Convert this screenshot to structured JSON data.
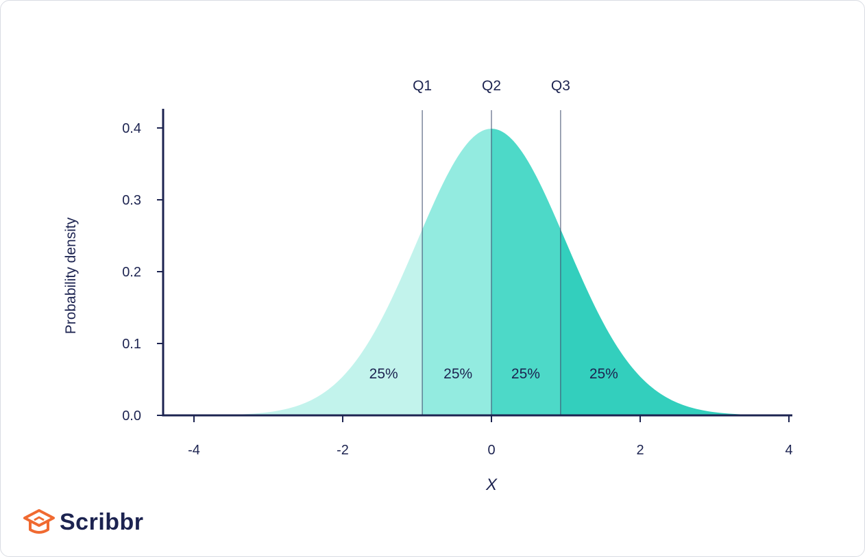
{
  "chart_data": {
    "type": "area",
    "distribution": "standard normal",
    "x": [
      -4,
      -3.5,
      -3,
      -2.5,
      -2,
      -1.5,
      -1,
      -0.5,
      0,
      0.5,
      1,
      1.5,
      2,
      2.5,
      3,
      3.5,
      4
    ],
    "y": [
      0.0001,
      0.0009,
      0.0044,
      0.0175,
      0.054,
      0.1295,
      0.242,
      0.3521,
      0.3989,
      0.3521,
      0.242,
      0.1295,
      0.054,
      0.0175,
      0.0044,
      0.0009,
      0.0001
    ],
    "title": "",
    "xlabel": "X",
    "ylabel": "Probability density",
    "xlim": [
      -4.4,
      4.1
    ],
    "ylim": [
      0,
      0.42
    ],
    "x_ticks": [
      -4,
      -2,
      0,
      2,
      4
    ],
    "x_tick_labels": [
      "-4",
      "-2",
      "0",
      "2",
      "4"
    ],
    "y_ticks": [
      0.0,
      0.1,
      0.2,
      0.3,
      0.4
    ],
    "y_tick_labels": [
      "0.0",
      "0.1",
      "0.2",
      "0.3",
      "0.4"
    ],
    "grid": false,
    "quartiles": [
      {
        "label": "Q1",
        "x": -0.93
      },
      {
        "label": "Q2",
        "x": 0
      },
      {
        "label": "Q3",
        "x": 0.93
      }
    ],
    "regions": [
      {
        "label": "25%",
        "from": -4,
        "to": -0.93,
        "color": "#c2f3ec",
        "label_x": -1.45
      },
      {
        "label": "25%",
        "from": -0.93,
        "to": 0,
        "color": "#93ebe0",
        "label_x": -0.45
      },
      {
        "label": "25%",
        "from": 0,
        "to": 0.93,
        "color": "#4dd9c8",
        "label_x": 0.46
      },
      {
        "label": "25%",
        "from": 0.93,
        "to": 4,
        "color": "#33cfbd",
        "label_x": 1.51
      }
    ],
    "label_y": 0.058,
    "colors": {
      "axis": "#1c2350",
      "quartile_line": "#3b4a6b"
    }
  },
  "brand": {
    "name": "Scribbr",
    "icon": "graduation-cap-icon",
    "color": "#f06a31"
  }
}
